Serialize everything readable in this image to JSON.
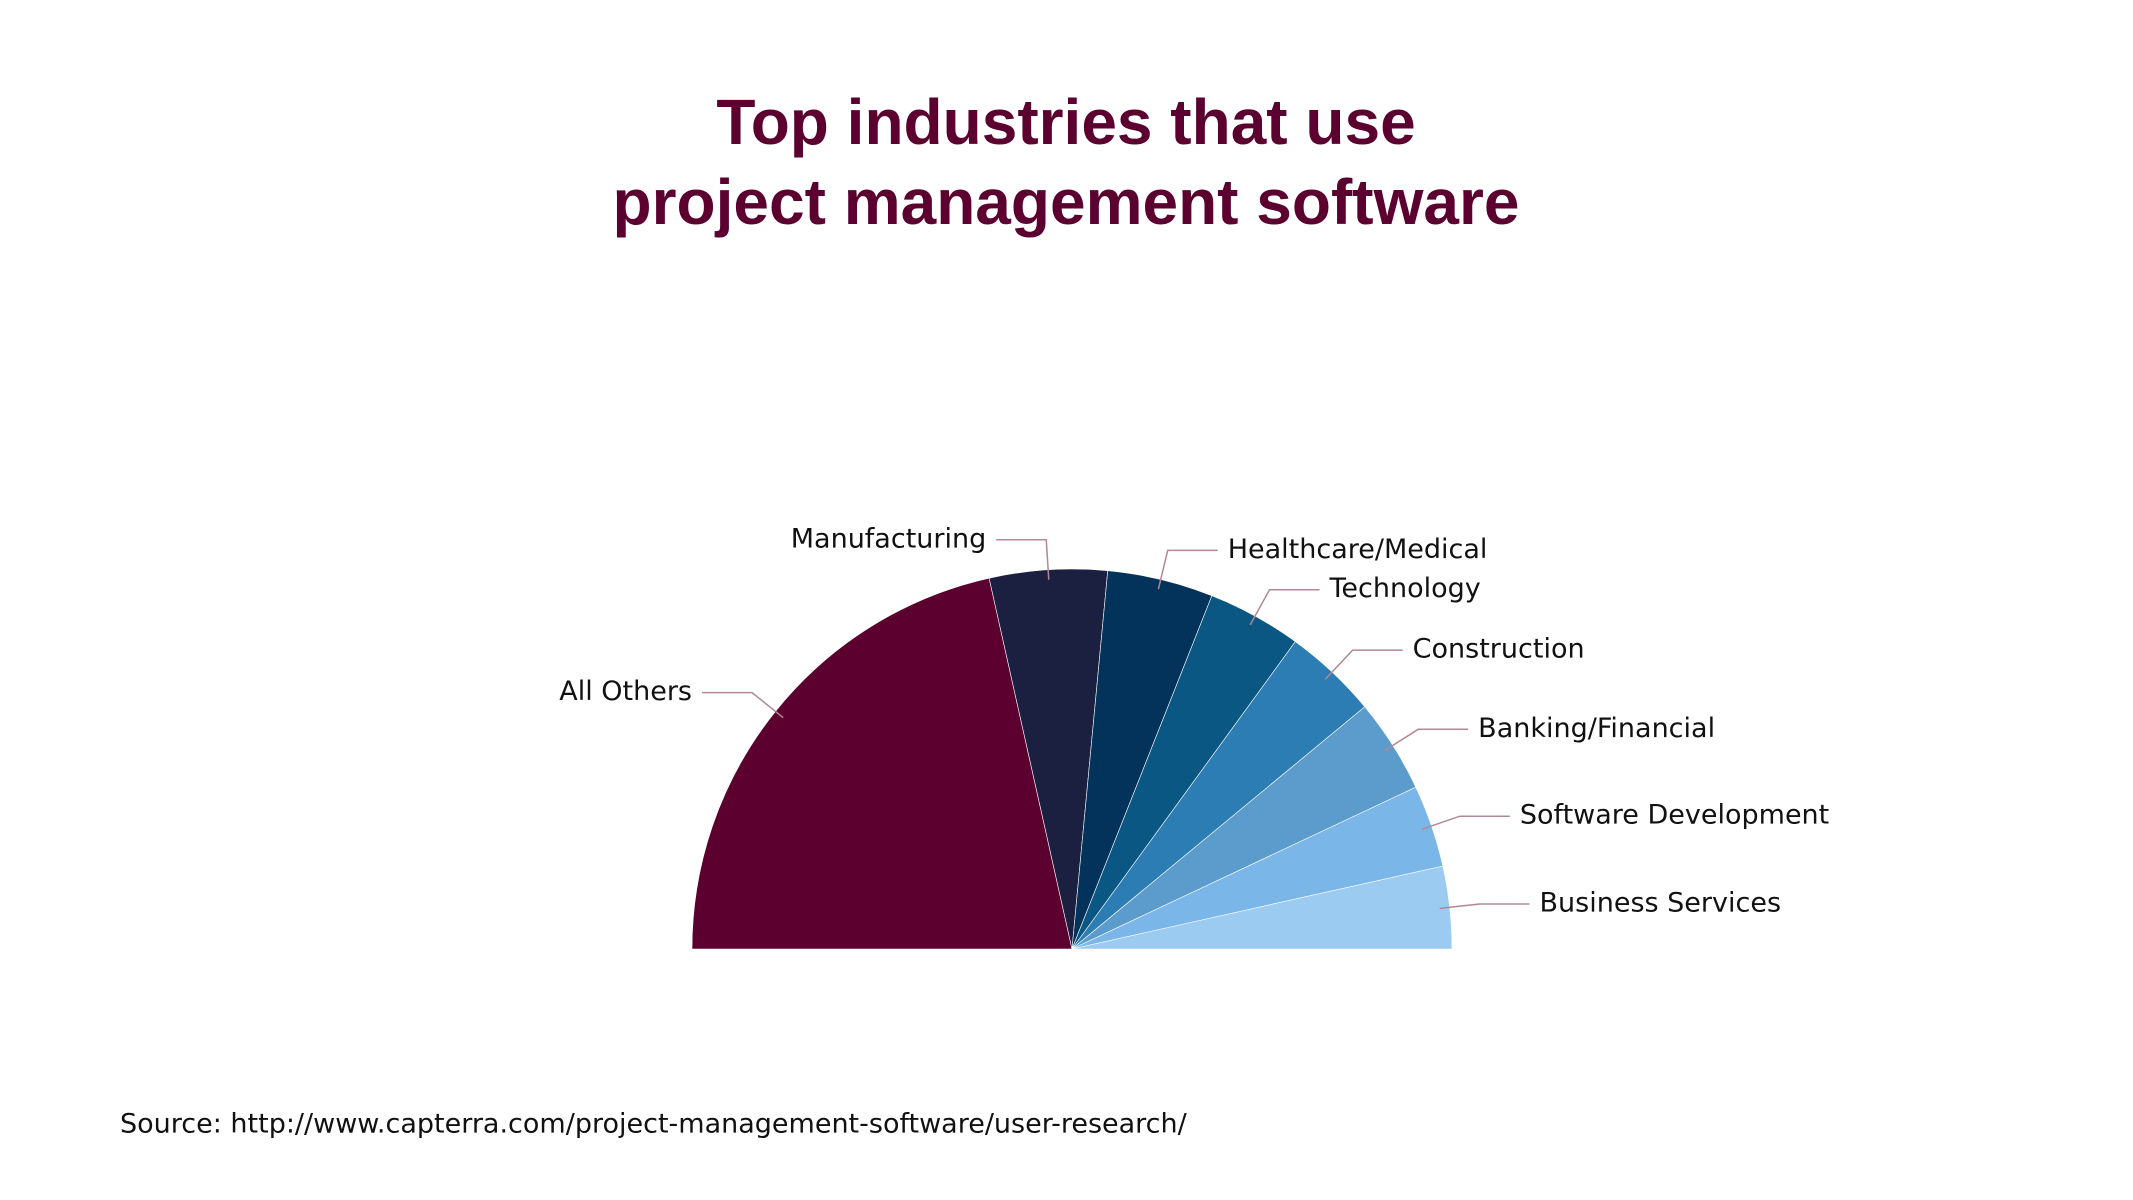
{
  "chart_data": {
    "type": "half-pie",
    "title": "Top industries that use\nproject management software",
    "categories": [
      "All Others",
      "Manufacturing",
      "Healthcare/Medical",
      "Technology",
      "Construction",
      "Banking/Financial",
      "Software Development",
      "Business Services"
    ],
    "values": [
      43,
      10,
      9,
      8,
      8,
      8,
      7,
      7
    ],
    "colors": [
      "#5c0030",
      "#1b2040",
      "#03325a",
      "#0b5784",
      "#2b7db3",
      "#5b9ccd",
      "#7ab6e8",
      "#9ccbf2"
    ],
    "source": "Source: http://www.capterra.com/project-management-software/user-research/"
  }
}
